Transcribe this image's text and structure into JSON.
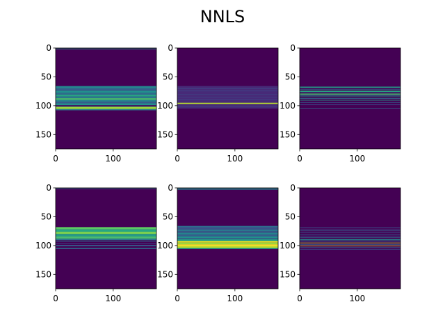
{
  "title": "NNLS",
  "chart_data": {
    "type": "heatmap",
    "layout": "2x3 grid of image panels",
    "colormap": "viridis",
    "value_range": [
      0,
      1
    ],
    "x_range": [
      0,
      175
    ],
    "y_range": [
      0,
      175
    ],
    "y_inverted": true,
    "x_ticks": [
      0,
      100
    ],
    "y_ticks": [
      0,
      50,
      100,
      150
    ],
    "panels": [
      {
        "bands": [
          {
            "y0": 1,
            "y1": 2,
            "v": 0.55
          },
          {
            "y0": 66,
            "y1": 70,
            "v": 0.45
          },
          {
            "y0": 70,
            "y1": 74,
            "v": 0.3
          },
          {
            "y0": 74,
            "y1": 78,
            "v": 0.5
          },
          {
            "y0": 78,
            "y1": 81,
            "v": 0.35
          },
          {
            "y0": 81,
            "y1": 84,
            "v": 0.6
          },
          {
            "y0": 84,
            "y1": 87,
            "v": 0.4
          },
          {
            "y0": 87,
            "y1": 90,
            "v": 0.7
          },
          {
            "y0": 90,
            "y1": 93,
            "v": 0.45
          },
          {
            "y0": 93,
            "y1": 96,
            "v": 0.3
          },
          {
            "y0": 96,
            "y1": 99,
            "v": 0.5
          },
          {
            "y0": 100,
            "y1": 101,
            "v": 0.35
          },
          {
            "y0": 102,
            "y1": 106,
            "v": 0.85
          },
          {
            "y0": 106,
            "y1": 108,
            "v": 0.4
          }
        ]
      },
      {
        "bands": [
          {
            "y0": 66,
            "y1": 105,
            "v": 0.12
          },
          {
            "y0": 70,
            "y1": 71,
            "v": 0.2
          },
          {
            "y0": 74,
            "y1": 75,
            "v": 0.22
          },
          {
            "y0": 80,
            "y1": 81,
            "v": 0.2
          },
          {
            "y0": 85,
            "y1": 86,
            "v": 0.2
          },
          {
            "y0": 89,
            "y1": 90,
            "v": 0.22
          },
          {
            "y0": 95,
            "y1": 97,
            "v": 0.9
          },
          {
            "y0": 101,
            "y1": 102,
            "v": 0.2
          }
        ]
      },
      {
        "bands": [
          {
            "y0": 67,
            "y1": 69,
            "v": 0.55
          },
          {
            "y0": 71,
            "y1": 72,
            "v": 0.35
          },
          {
            "y0": 74,
            "y1": 76,
            "v": 0.6
          },
          {
            "y0": 77,
            "y1": 78,
            "v": 0.3
          },
          {
            "y0": 79,
            "y1": 81,
            "v": 0.7
          },
          {
            "y0": 82,
            "y1": 83,
            "v": 0.4
          },
          {
            "y0": 84,
            "y1": 85,
            "v": 0.5
          },
          {
            "y0": 87,
            "y1": 88,
            "v": 0.35
          },
          {
            "y0": 90,
            "y1": 91,
            "v": 0.55
          },
          {
            "y0": 94,
            "y1": 95,
            "v": 0.3
          },
          {
            "y0": 98,
            "y1": 99,
            "v": 0.25
          },
          {
            "y0": 104,
            "y1": 105,
            "v": 0.3
          }
        ]
      },
      {
        "bands": [
          {
            "y0": 1,
            "y1": 2,
            "v": 0.35
          },
          {
            "y0": 68,
            "y1": 72,
            "v": 0.75
          },
          {
            "y0": 72,
            "y1": 76,
            "v": 0.6
          },
          {
            "y0": 76,
            "y1": 80,
            "v": 0.8
          },
          {
            "y0": 80,
            "y1": 84,
            "v": 0.55
          },
          {
            "y0": 84,
            "y1": 88,
            "v": 0.7
          },
          {
            "y0": 88,
            "y1": 91,
            "v": 0.4
          },
          {
            "y0": 93,
            "y1": 94,
            "v": 0.3
          },
          {
            "y0": 96,
            "y1": 97,
            "v": 0.25
          },
          {
            "y0": 99,
            "y1": 101,
            "v": 0.3
          },
          {
            "y0": 104,
            "y1": 106,
            "v": 0.35
          }
        ]
      },
      {
        "bands": [
          {
            "y0": 1,
            "y1": 3,
            "v": 0.5
          },
          {
            "y0": 66,
            "y1": 69,
            "v": 0.35
          },
          {
            "y0": 69,
            "y1": 72,
            "v": 0.25
          },
          {
            "y0": 72,
            "y1": 75,
            "v": 0.4
          },
          {
            "y0": 75,
            "y1": 78,
            "v": 0.3
          },
          {
            "y0": 78,
            "y1": 81,
            "v": 0.45
          },
          {
            "y0": 81,
            "y1": 84,
            "v": 0.3
          },
          {
            "y0": 84,
            "y1": 87,
            "v": 0.5
          },
          {
            "y0": 87,
            "y1": 89,
            "v": 0.35
          },
          {
            "y0": 89,
            "y1": 92,
            "v": 0.55
          },
          {
            "y0": 92,
            "y1": 95,
            "v": 0.95
          },
          {
            "y0": 95,
            "y1": 98,
            "v": 0.85
          },
          {
            "y0": 98,
            "y1": 101,
            "v": 1.0
          },
          {
            "y0": 101,
            "y1": 104,
            "v": 0.9
          },
          {
            "y0": 104,
            "y1": 106,
            "v": 0.6
          }
        ]
      },
      {
        "bands": [
          {
            "y0": 68,
            "y1": 69,
            "v": 0.25
          },
          {
            "y0": 71,
            "y1": 72,
            "v": 0.2
          },
          {
            "y0": 74,
            "y1": 75,
            "v": 0.3
          },
          {
            "y0": 77,
            "y1": 78,
            "v": 0.25
          },
          {
            "y0": 80,
            "y1": 81,
            "v": 0.3
          },
          {
            "y0": 83,
            "y1": 84,
            "v": 0.25
          },
          {
            "y0": 86,
            "y1": 87,
            "v": 0.35
          },
          {
            "y0": 89,
            "y1": 91,
            "v": 0.5
          },
          {
            "y0": 92,
            "y1": 93,
            "v": 0.3
          },
          {
            "y0": 95,
            "y1": 96,
            "v": 0.9
          },
          {
            "y0": 98,
            "y1": 99,
            "v": 0.3
          },
          {
            "y0": 100,
            "y1": 101,
            "v": 0.95
          },
          {
            "y0": 103,
            "y1": 104,
            "v": 0.3
          },
          {
            "y0": 106,
            "y1": 107,
            "v": 0.25
          }
        ]
      }
    ]
  }
}
